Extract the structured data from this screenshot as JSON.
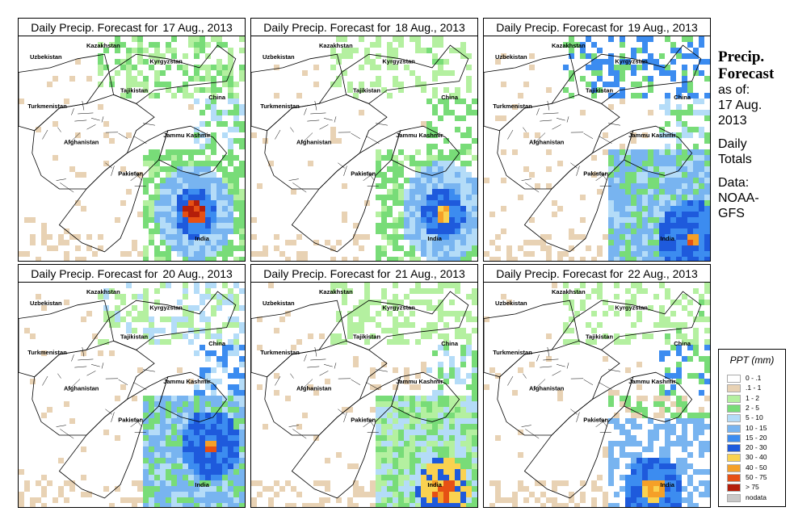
{
  "title_prefix": "Daily Precip. Forecast for",
  "panels": [
    {
      "date": "17 Aug., 2013"
    },
    {
      "date": "18 Aug., 2013"
    },
    {
      "date": "19 Aug., 2013"
    },
    {
      "date": "20 Aug., 2013"
    },
    {
      "date": "21 Aug., 2013"
    },
    {
      "date": "22 Aug., 2013"
    }
  ],
  "map_labels": {
    "kazakhstan": "Kazakhstan",
    "uzbekistan": "Uzbekistan",
    "kyrgyzstan": "Kyrgyzstan",
    "tajikistan": "Tajikistan",
    "turkmenistan": "Turkmenistan",
    "china": "China",
    "afghanistan": "Afghanistan",
    "jammu_kashmir": "Jammu Kashmir",
    "pakistan": "Pakistan",
    "india": "India"
  },
  "side_info": {
    "heading_line1": "Precip.",
    "heading_line2": "Forecast",
    "as_of_label": "as of:",
    "as_of_date1": "17 Aug.",
    "as_of_date2": "2013",
    "totals1": "Daily",
    "totals2": "Totals",
    "data1": "Data:",
    "data2": "NOAA-",
    "data3": "GFS"
  },
  "legend": {
    "title": "PPT (mm)",
    "items": [
      {
        "label": "0 - .1",
        "color": "#ffffff"
      },
      {
        "label": ".1 - 1",
        "color": "#e8d2b4"
      },
      {
        "label": "1 - 2",
        "color": "#b4f0a0"
      },
      {
        "label": "2 - 5",
        "color": "#78dc78"
      },
      {
        "label": "5 - 10",
        "color": "#b4dcf8"
      },
      {
        "label": "10 - 15",
        "color": "#78b4f0"
      },
      {
        "label": "15 - 20",
        "color": "#3c8cf0"
      },
      {
        "label": "20 - 30",
        "color": "#1e5adc"
      },
      {
        "label": "30 - 40",
        "color": "#fad250"
      },
      {
        "label": "40 - 50",
        "color": "#f5a028"
      },
      {
        "label": "50 - 75",
        "color": "#e65014"
      },
      {
        "label": "> 75",
        "color": "#b41e0a"
      },
      {
        "label": "nodata",
        "color": "#c8c8c8"
      }
    ]
  }
}
